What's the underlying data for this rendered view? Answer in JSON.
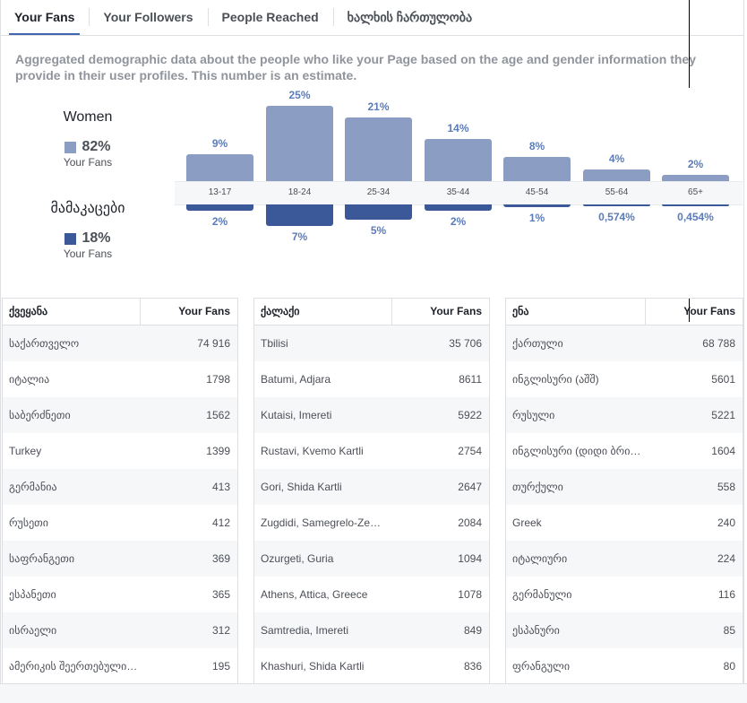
{
  "tabs": [
    {
      "label": "Your Fans",
      "active": true
    },
    {
      "label": "Your Followers",
      "active": false
    },
    {
      "label": "People Reached",
      "active": false
    },
    {
      "label": "ხალხის ჩართულობა",
      "active": false
    }
  ],
  "description": "Aggregated demographic data about the people who like your Page based on the age and gender information they provide in their user profiles. This number is an estimate.",
  "women": {
    "title": "Women",
    "percent": "82%",
    "sub": "Your Fans",
    "color": "#8b9dc3"
  },
  "men": {
    "title": "მამაკაცები",
    "percent": "18%",
    "sub": "Your Fans",
    "color": "#3b5998"
  },
  "chart_data": {
    "type": "bar",
    "categories": [
      "13-17",
      "18-24",
      "25-34",
      "35-44",
      "45-54",
      "55-64",
      "65+"
    ],
    "series": [
      {
        "name": "Women",
        "values": [
          9,
          25,
          21,
          14,
          8,
          4,
          2
        ],
        "labels": [
          "9%",
          "25%",
          "21%",
          "14%",
          "8%",
          "4%",
          "2%"
        ],
        "color": "#8b9dc3"
      },
      {
        "name": "მამაკაცები",
        "values": [
          2,
          7,
          5,
          2,
          1,
          0.574,
          0.454
        ],
        "labels": [
          "2%",
          "7%",
          "5%",
          "2%",
          "1%",
          "0,574%",
          "0,454%"
        ],
        "color": "#3b5998"
      }
    ]
  },
  "tables": [
    {
      "header": "ქვეყანა",
      "value_header": "Your Fans",
      "rows": [
        {
          "name": "საქართველო",
          "value": "74 916"
        },
        {
          "name": "იტალია",
          "value": "1798"
        },
        {
          "name": "საბერძნეთი",
          "value": "1562"
        },
        {
          "name": "Turkey",
          "value": "1399"
        },
        {
          "name": "გერმანია",
          "value": "413"
        },
        {
          "name": "რუსეთი",
          "value": "412"
        },
        {
          "name": "საფრანგეთი",
          "value": "369"
        },
        {
          "name": "ესპანეთი",
          "value": "365"
        },
        {
          "name": "ისრაელი",
          "value": "312"
        },
        {
          "name": "ამერიკის შეერთებული…",
          "value": "195"
        }
      ]
    },
    {
      "header": "ქალაქი",
      "value_header": "Your Fans",
      "rows": [
        {
          "name": "Tbilisi",
          "value": "35 706"
        },
        {
          "name": "Batumi, Adjara",
          "value": "8611"
        },
        {
          "name": "Kutaisi, Imereti",
          "value": "5922"
        },
        {
          "name": "Rustavi, Kvemo Kartli",
          "value": "2754"
        },
        {
          "name": "Gori, Shida Kartli",
          "value": "2647"
        },
        {
          "name": "Zugdidi, Samegrelo-Ze…",
          "value": "2084"
        },
        {
          "name": "Ozurgeti, Guria",
          "value": "1094"
        },
        {
          "name": "Athens, Attica, Greece",
          "value": "1078"
        },
        {
          "name": "Samtredia, Imereti",
          "value": "849"
        },
        {
          "name": "Khashuri, Shida Kartli",
          "value": "836"
        }
      ]
    },
    {
      "header": "ენა",
      "value_header": "Your Fans",
      "rows": [
        {
          "name": "ქართული",
          "value": "68 788"
        },
        {
          "name": "ინგლისური (აშშ)",
          "value": "5601"
        },
        {
          "name": "რუსული",
          "value": "5221"
        },
        {
          "name": "ინგლისური (დიდი ბრი…",
          "value": "1604"
        },
        {
          "name": "თურქული",
          "value": "558"
        },
        {
          "name": "Greek",
          "value": "240"
        },
        {
          "name": "იტალიური",
          "value": "224"
        },
        {
          "name": "გერმანული",
          "value": "116"
        },
        {
          "name": "ესპანური",
          "value": "85"
        },
        {
          "name": "ფრანგული",
          "value": "80"
        }
      ]
    }
  ]
}
